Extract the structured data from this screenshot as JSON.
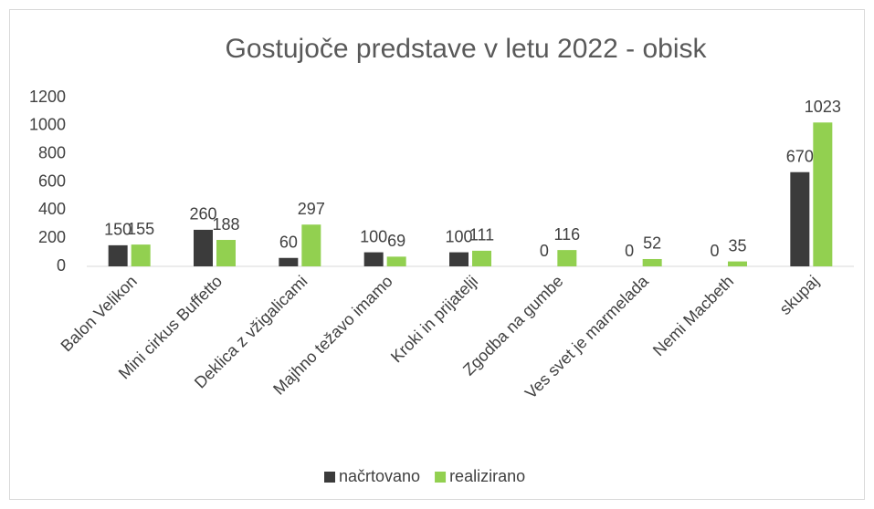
{
  "chart_data": {
    "type": "bar",
    "title": "Gostujoče predstave v letu 2022 - obisk",
    "categories": [
      "Balon Velikon",
      "Mini cirkus Buffetto",
      "Deklica z vžigalicami",
      "Majhno težavo imamo",
      "Kroki in prijatelji",
      "Zgodba na gumbe",
      "Ves svet je marmelada",
      "Nemi Macbeth",
      "skupaj"
    ],
    "series": [
      {
        "name": "načrtovano",
        "color": "#3b3b3b",
        "values": [
          150,
          260,
          60,
          100,
          100,
          0,
          0,
          0,
          670
        ]
      },
      {
        "name": "realizirano",
        "color": "#92d050",
        "values": [
          155,
          188,
          297,
          69,
          111,
          116,
          52,
          35,
          1023
        ]
      }
    ],
    "ylim": [
      0,
      1200
    ],
    "yticks": [
      0,
      200,
      400,
      600,
      800,
      1000,
      1200
    ],
    "grid": false,
    "legend": "bottom"
  }
}
